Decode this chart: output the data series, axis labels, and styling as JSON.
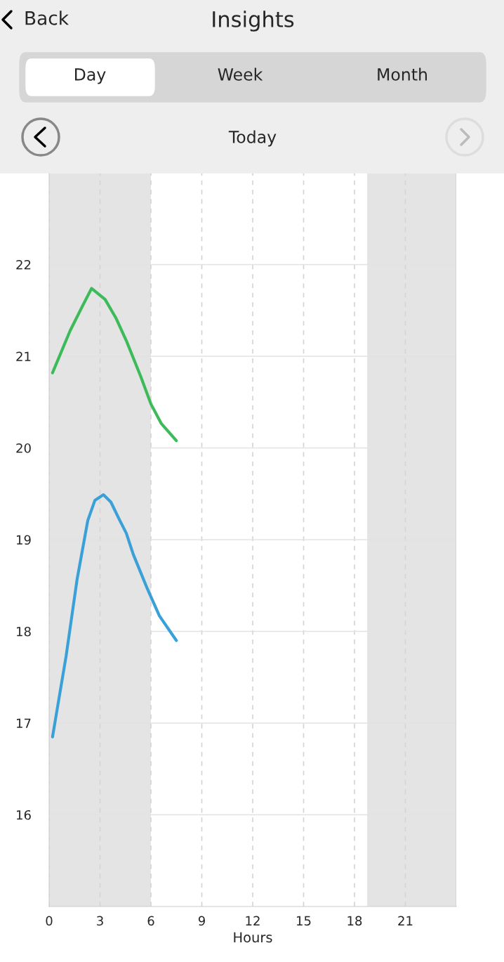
{
  "chart_data": {
    "type": "line",
    "title": "Insights",
    "subtitle": "Today",
    "xlabel": "Hours",
    "annotations": [
      "Back",
      "Day",
      "Week",
      "Month"
    ],
    "series": [
      {
        "color": "#3dbb5a",
        "x": [
          0.2,
          1.24,
          2.0,
          2.5,
          3.3,
          3.93,
          4.55,
          5.4,
          6.0,
          6.6,
          7.5
        ],
        "values": [
          20.82,
          21.28,
          21.56,
          21.74,
          21.62,
          21.42,
          21.17,
          20.78,
          20.48,
          20.27,
          20.08
        ]
      },
      {
        "color": "#3aa0d8",
        "x": [
          0.2,
          1.0,
          1.65,
          2.28,
          2.7,
          3.2,
          3.64,
          4.14,
          4.55,
          4.96,
          5.8,
          6.5,
          7.5
        ],
        "values": [
          16.85,
          17.73,
          18.57,
          19.21,
          19.43,
          19.49,
          19.41,
          19.22,
          19.07,
          18.84,
          18.46,
          18.17,
          17.9
        ]
      }
    ],
    "xlim": [
      0,
      24
    ],
    "xticks": [
      0,
      3,
      6,
      9,
      12,
      15,
      18,
      21
    ],
    "ylim": [
      15,
      23
    ],
    "yticks": [
      16,
      17,
      18,
      19,
      20,
      21,
      22
    ],
    "bands": [
      {
        "axis": "x",
        "from": 0,
        "to": 6,
        "color": "#e4e4e4"
      },
      {
        "axis": "x",
        "from": 18.75,
        "to": 24,
        "color": "#e4e4e4"
      }
    ],
    "grid": true,
    "marker": "none",
    "line_style": "solid"
  }
}
